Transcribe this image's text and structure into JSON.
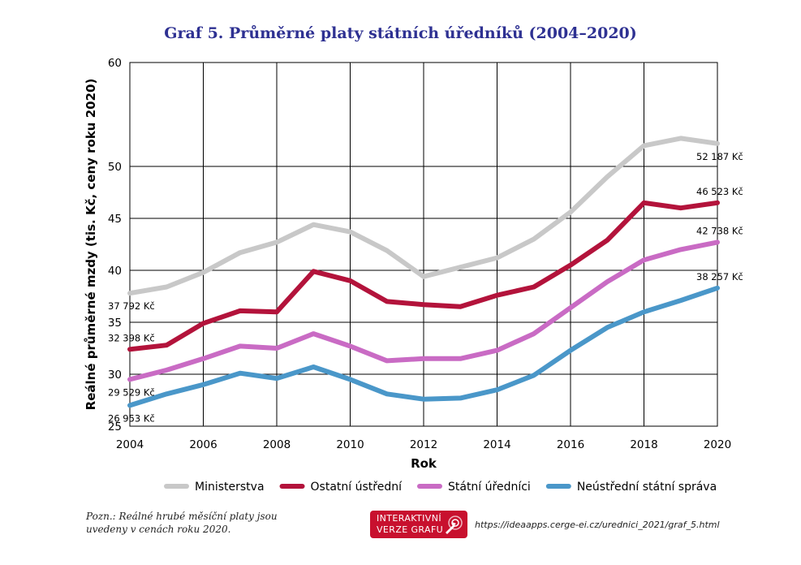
{
  "title": "Graf 5. Průměrné platy státních úředníků (2004–2020)",
  "note": "Pozn.: Reálné hrubé měsíční platy jsou uvedeny v cenách roku 2020.",
  "button": {
    "line1": "INTERAKTIVNÍ",
    "line2": "VERZE GRAFU",
    "icon": "cursor-click-icon"
  },
  "source_url": "https://ideaapps.cerge-ei.cz/urednici_2021/graf_5.html",
  "chart_data": {
    "type": "line",
    "xlabel": "Rok",
    "ylabel": "Reálné průměrné mzdy (tis. Kč, ceny roku 2020)",
    "xlim": [
      2004,
      2020
    ],
    "ylim": [
      25,
      60
    ],
    "x_ticks": [
      2004,
      2006,
      2008,
      2010,
      2012,
      2014,
      2016,
      2018,
      2020
    ],
    "y_ticks": [
      25,
      30,
      35,
      40,
      45,
      50,
      60
    ],
    "grid": true,
    "legend_position": "bottom",
    "x": [
      2004,
      2005,
      2006,
      2007,
      2008,
      2009,
      2010,
      2011,
      2012,
      2013,
      2014,
      2015,
      2016,
      2017,
      2018,
      2019,
      2020
    ],
    "series": [
      {
        "name": "Ministerstva",
        "color": "#c8c8c8",
        "values": [
          37.8,
          38.4,
          39.8,
          41.7,
          42.7,
          44.4,
          43.7,
          41.9,
          39.4,
          40.3,
          41.2,
          43.0,
          45.6,
          49.0,
          52.0,
          52.7,
          52.2
        ],
        "labels": [
          {
            "x": 2004,
            "text": "37 792 Kč",
            "pos": "below"
          },
          {
            "x": 2020,
            "text": "52 187 Kč",
            "pos": "below"
          }
        ]
      },
      {
        "name": "Ostatní ústřední",
        "color": "#b3133b",
        "values": [
          32.4,
          32.8,
          34.9,
          36.1,
          36.0,
          39.9,
          39.0,
          37.0,
          36.7,
          36.5,
          37.6,
          38.4,
          40.5,
          42.9,
          46.5,
          46.0,
          46.5
        ],
        "labels": [
          {
            "x": 2004,
            "text": "32 398 Kč",
            "pos": "above"
          },
          {
            "x": 2020,
            "text": "46 523 Kč",
            "pos": "above"
          }
        ]
      },
      {
        "name": "Státní úředníci",
        "color": "#c96bc4",
        "values": [
          29.5,
          30.4,
          31.5,
          32.7,
          32.5,
          33.9,
          32.7,
          31.3,
          31.5,
          31.5,
          32.3,
          33.9,
          36.4,
          38.9,
          41.0,
          42.0,
          42.7
        ],
        "labels": [
          {
            "x": 2004,
            "text": "29 529 Kč",
            "pos": "below"
          },
          {
            "x": 2020,
            "text": "42 738 Kč",
            "pos": "above"
          }
        ]
      },
      {
        "name": "Neústřední státní správa",
        "color": "#4a97c9",
        "values": [
          27.0,
          28.1,
          29.0,
          30.1,
          29.6,
          30.7,
          29.5,
          28.1,
          27.6,
          27.7,
          28.5,
          29.9,
          32.3,
          34.5,
          36.0,
          37.1,
          38.3
        ],
        "labels": [
          {
            "x": 2004,
            "text": "26 953 Kč",
            "pos": "below"
          },
          {
            "x": 2020,
            "text": "38 257 Kč",
            "pos": "above"
          }
        ]
      }
    ]
  }
}
